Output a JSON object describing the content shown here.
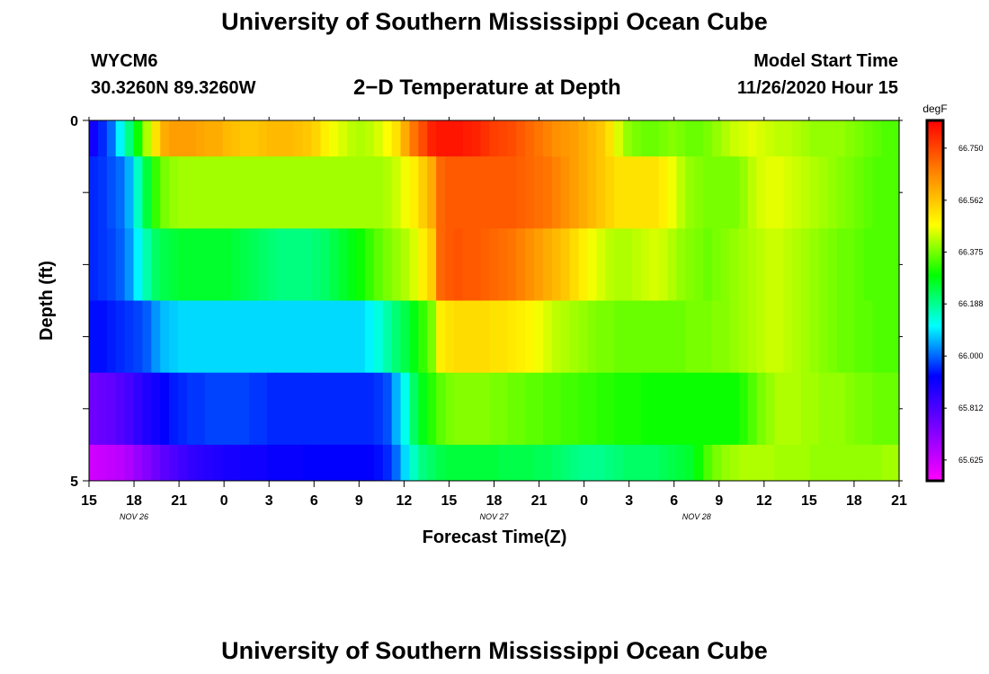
{
  "header": {
    "title": "University of Southern Mississippi Ocean Cube",
    "station_id": "WYCM6",
    "station_coords": "30.3260N 89.3260W",
    "plot_title": "2−D Temperature at Depth",
    "start_label": "Model Start Time",
    "start_value": "11/26/2020 Hour 15"
  },
  "footer": {
    "title": "University of Southern Mississippi Ocean Cube"
  },
  "chart_data": {
    "type": "heatmap",
    "xlabel": "Forecast Time(Z)",
    "ylabel": "Depth (ft)",
    "x_tick_labels": [
      "15",
      "18",
      "21",
      "0",
      "3",
      "6",
      "9",
      "12",
      "15",
      "18",
      "21",
      "0",
      "3",
      "6",
      "9",
      "12",
      "15",
      "18",
      "21"
    ],
    "x_date_labels": [
      {
        "label": "NOV  26",
        "tick_index": 1
      },
      {
        "label": "NOV  27",
        "tick_index": 9
      },
      {
        "label": "NOV  28",
        "tick_index": 13.5
      }
    ],
    "y_tick_labels": [
      "0",
      "5"
    ],
    "ylim": [
      0,
      5
    ],
    "hours_per_column": 1,
    "colorbar": {
      "unit": "degF",
      "min": 65.55,
      "max": 66.85,
      "tick_labels": [
        "66.750",
        "66.562",
        "66.375",
        "66.188",
        "66.000",
        "65.812",
        "65.625"
      ],
      "tick_values": [
        66.75,
        66.562,
        66.375,
        66.188,
        66.0,
        65.812,
        65.625
      ]
    },
    "layers": [
      {
        "depth_range": [
          0,
          0.5
        ],
        "values": [
          65.9,
          65.95,
          66.0,
          66.1,
          66.2,
          66.3,
          66.42,
          66.52,
          66.6,
          66.62,
          66.62,
          66.62,
          66.61,
          66.6,
          66.6,
          66.58,
          66.57,
          66.56,
          66.56,
          66.57,
          66.58,
          66.58,
          66.58,
          66.57,
          66.56,
          66.54,
          66.5,
          66.47,
          66.45,
          66.43,
          66.42,
          66.43,
          66.45,
          66.48,
          66.52,
          66.6,
          66.68,
          66.74,
          66.8,
          66.82,
          66.82,
          66.82,
          66.81,
          66.8,
          66.78,
          66.76,
          66.75,
          66.74,
          66.72,
          66.7,
          66.68,
          66.66,
          66.64,
          66.63,
          66.62,
          66.6,
          66.58,
          66.56,
          66.52,
          66.45,
          66.4,
          66.38,
          66.37,
          66.37,
          66.38,
          66.39,
          66.38,
          66.37,
          66.37,
          66.38,
          66.4,
          66.42,
          66.44,
          66.45,
          66.46,
          66.45,
          66.44,
          66.43,
          66.43,
          66.42,
          66.41,
          66.4,
          66.4,
          66.4,
          66.4,
          66.39,
          66.38,
          66.37,
          66.36,
          66.35,
          66.35
        ]
      },
      {
        "depth_range": [
          0.5,
          1.5
        ],
        "values": [
          65.95,
          65.96,
          65.98,
          66.0,
          66.05,
          66.15,
          66.25,
          66.33,
          66.38,
          66.4,
          66.41,
          66.41,
          66.41,
          66.41,
          66.41,
          66.41,
          66.41,
          66.41,
          66.41,
          66.41,
          66.41,
          66.41,
          66.41,
          66.41,
          66.41,
          66.41,
          66.41,
          66.41,
          66.41,
          66.41,
          66.41,
          66.41,
          66.41,
          66.42,
          66.44,
          66.47,
          66.5,
          66.55,
          66.6,
          66.7,
          66.72,
          66.72,
          66.72,
          66.72,
          66.72,
          66.72,
          66.72,
          66.72,
          66.71,
          66.7,
          66.69,
          66.68,
          66.66,
          66.64,
          66.62,
          66.6,
          66.58,
          66.56,
          66.54,
          66.52,
          66.52,
          66.52,
          66.52,
          66.52,
          66.5,
          66.47,
          66.43,
          66.4,
          66.39,
          66.38,
          66.38,
          66.38,
          66.38,
          66.4,
          66.43,
          66.45,
          66.46,
          66.46,
          66.45,
          66.44,
          66.43,
          66.42,
          66.41,
          66.4,
          66.39,
          66.38,
          66.37,
          66.36,
          66.35,
          66.35,
          66.35
        ]
      },
      {
        "depth_range": [
          1.5,
          2.5
        ],
        "values": [
          65.95,
          65.96,
          65.97,
          65.99,
          66.03,
          66.1,
          66.17,
          66.22,
          66.24,
          66.25,
          66.26,
          66.26,
          66.26,
          66.26,
          66.26,
          66.26,
          66.25,
          66.24,
          66.23,
          66.22,
          66.21,
          66.2,
          66.2,
          66.2,
          66.2,
          66.21,
          66.22,
          66.24,
          66.26,
          66.28,
          66.3,
          66.33,
          66.36,
          66.38,
          66.4,
          66.42,
          66.45,
          66.5,
          66.55,
          66.7,
          66.72,
          66.73,
          66.72,
          66.72,
          66.71,
          66.7,
          66.69,
          66.68,
          66.66,
          66.64,
          66.62,
          66.6,
          66.58,
          66.56,
          66.53,
          66.5,
          66.47,
          66.45,
          66.43,
          66.42,
          66.42,
          66.43,
          66.44,
          66.45,
          66.44,
          66.42,
          66.4,
          66.39,
          66.38,
          66.37,
          66.38,
          66.39,
          66.4,
          66.41,
          66.42,
          66.43,
          66.44,
          66.44,
          66.43,
          66.42,
          66.41,
          66.4,
          66.39,
          66.38,
          66.37,
          66.37,
          66.36,
          66.35,
          66.35,
          66.35,
          66.35
        ]
      },
      {
        "depth_range": [
          2.5,
          3.5
        ],
        "values": [
          65.93,
          65.93,
          65.94,
          65.95,
          65.96,
          65.97,
          65.99,
          66.03,
          66.06,
          66.07,
          66.08,
          66.08,
          66.08,
          66.08,
          66.08,
          66.08,
          66.08,
          66.08,
          66.08,
          66.08,
          66.08,
          66.08,
          66.08,
          66.08,
          66.08,
          66.08,
          66.08,
          66.08,
          66.08,
          66.08,
          66.08,
          66.1,
          66.13,
          66.17,
          66.21,
          66.24,
          66.28,
          66.33,
          66.38,
          66.5,
          66.52,
          66.53,
          66.53,
          66.53,
          66.53,
          66.52,
          66.52,
          66.51,
          66.5,
          66.49,
          66.47,
          66.45,
          66.43,
          66.42,
          66.41,
          66.4,
          66.39,
          66.38,
          66.38,
          66.37,
          66.37,
          66.37,
          66.37,
          66.37,
          66.37,
          66.37,
          66.37,
          66.38,
          66.38,
          66.38,
          66.39,
          66.39,
          66.4,
          66.41,
          66.42,
          66.43,
          66.44,
          66.44,
          66.43,
          66.42,
          66.41,
          66.4,
          66.39,
          66.38,
          66.37,
          66.37,
          66.36,
          66.36,
          66.35,
          66.35,
          66.35
        ]
      },
      {
        "depth_range": [
          3.5,
          4.5
        ],
        "values": [
          65.76,
          65.77,
          65.78,
          65.8,
          65.82,
          65.85,
          65.88,
          65.9,
          65.92,
          65.94,
          65.95,
          65.96,
          65.96,
          65.97,
          65.97,
          65.97,
          65.97,
          65.97,
          65.96,
          65.96,
          65.95,
          65.95,
          65.95,
          65.95,
          65.95,
          65.95,
          65.95,
          65.95,
          65.95,
          65.95,
          65.95,
          65.95,
          65.96,
          65.98,
          66.05,
          66.12,
          66.22,
          66.28,
          66.32,
          66.36,
          66.38,
          66.39,
          66.39,
          66.39,
          66.39,
          66.38,
          66.38,
          66.37,
          66.37,
          66.36,
          66.36,
          66.35,
          66.35,
          66.34,
          66.34,
          66.33,
          66.33,
          66.32,
          66.32,
          66.31,
          66.31,
          66.31,
          66.3,
          66.3,
          66.3,
          66.3,
          66.3,
          66.3,
          66.3,
          66.3,
          66.3,
          66.3,
          66.3,
          66.32,
          66.35,
          66.38,
          66.4,
          66.42,
          66.42,
          66.42,
          66.41,
          66.41,
          66.4,
          66.4,
          66.4,
          66.39,
          66.38,
          66.38,
          66.37,
          66.37,
          66.37
        ]
      },
      {
        "depth_range": [
          4.5,
          5
        ],
        "values": [
          65.62,
          65.63,
          65.64,
          65.65,
          65.67,
          65.7,
          65.73,
          65.76,
          65.79,
          65.81,
          65.83,
          65.85,
          65.86,
          65.87,
          65.88,
          65.89,
          65.89,
          65.9,
          65.9,
          65.9,
          65.91,
          65.91,
          65.91,
          65.91,
          65.92,
          65.92,
          65.92,
          65.92,
          65.92,
          65.92,
          65.92,
          65.92,
          65.93,
          65.95,
          66.0,
          66.08,
          66.15,
          66.2,
          66.22,
          66.24,
          66.25,
          66.25,
          66.25,
          66.25,
          66.25,
          66.25,
          66.24,
          66.24,
          66.24,
          66.24,
          66.23,
          66.23,
          66.22,
          66.21,
          66.2,
          66.19,
          66.19,
          66.19,
          66.2,
          66.21,
          66.22,
          66.22,
          66.22,
          66.22,
          66.23,
          66.24,
          66.25,
          66.26,
          66.3,
          66.35,
          66.38,
          66.4,
          66.41,
          66.42,
          66.42,
          66.42,
          66.42,
          66.41,
          66.41,
          66.41,
          66.41,
          66.4,
          66.4,
          66.4,
          66.4,
          66.4,
          66.4,
          66.4,
          66.4,
          66.41,
          66.41
        ]
      }
    ]
  }
}
